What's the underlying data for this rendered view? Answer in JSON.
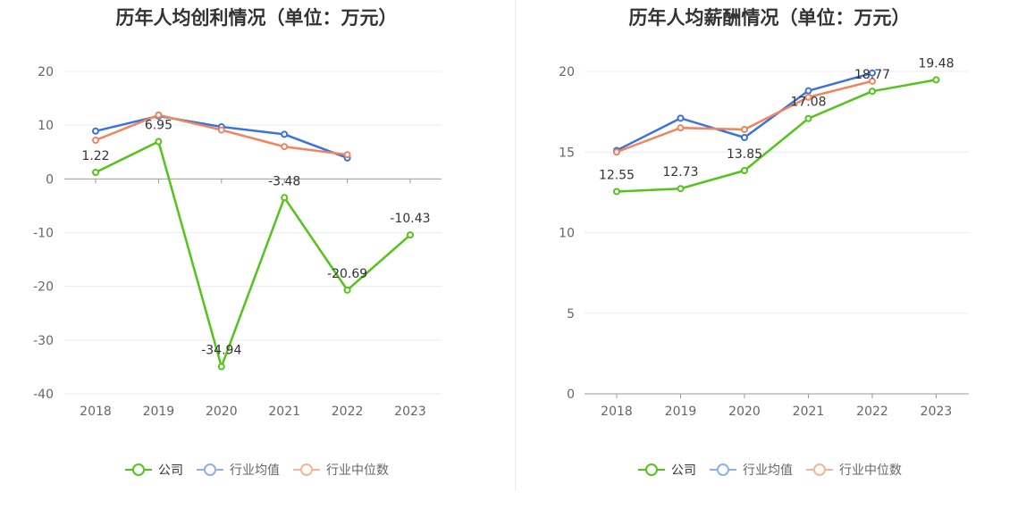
{
  "colors": {
    "company": "#52c41a",
    "industry_avg": "#3a72e0",
    "industry_median": "#f0845c",
    "grid": "#e8ecf4",
    "axis": "#999999"
  },
  "legend": {
    "company": "公司",
    "industry_avg": "行业均值",
    "industry_median": "行业中位数"
  },
  "chart_data": [
    {
      "type": "line",
      "title": "历年人均创利情况（单位：万元）",
      "categories": [
        "2018",
        "2019",
        "2020",
        "2021",
        "2022",
        "2023"
      ],
      "ylim": [
        -40,
        20
      ],
      "yticks": [
        20,
        10,
        0,
        -10,
        -20,
        -30,
        -40
      ],
      "series": [
        {
          "name": "公司",
          "values": [
            1.22,
            6.95,
            -34.94,
            -3.48,
            -20.69,
            -10.43
          ],
          "labels": [
            "1.22",
            "6.95",
            "-34.94",
            "-3.48",
            "-20.69",
            "-10.43"
          ]
        },
        {
          "name": "行业均值",
          "values": [
            8.9,
            11.7,
            9.7,
            8.3,
            3.9,
            null
          ]
        },
        {
          "name": "行业中位数",
          "values": [
            7.2,
            11.9,
            9.1,
            6.0,
            4.5,
            null
          ]
        }
      ],
      "grid": true,
      "legend_position": "bottom"
    },
    {
      "type": "line",
      "title": "历年人均薪酬情况（单位：万元）",
      "categories": [
        "2018",
        "2019",
        "2020",
        "2021",
        "2022",
        "2023"
      ],
      "ylim": [
        0,
        20
      ],
      "yticks": [
        20,
        15,
        10,
        5,
        0
      ],
      "series": [
        {
          "name": "公司",
          "values": [
            12.55,
            12.73,
            13.85,
            17.08,
            18.77,
            19.48
          ],
          "labels": [
            "12.55",
            "12.73",
            "13.85",
            "17.08",
            "18.77",
            "19.48"
          ]
        },
        {
          "name": "行业均值",
          "values": [
            15.1,
            17.1,
            15.9,
            18.8,
            19.9,
            null
          ]
        },
        {
          "name": "行业中位数",
          "values": [
            15.0,
            16.5,
            16.4,
            18.4,
            19.4,
            null
          ]
        }
      ],
      "grid": true,
      "legend_position": "bottom"
    }
  ]
}
